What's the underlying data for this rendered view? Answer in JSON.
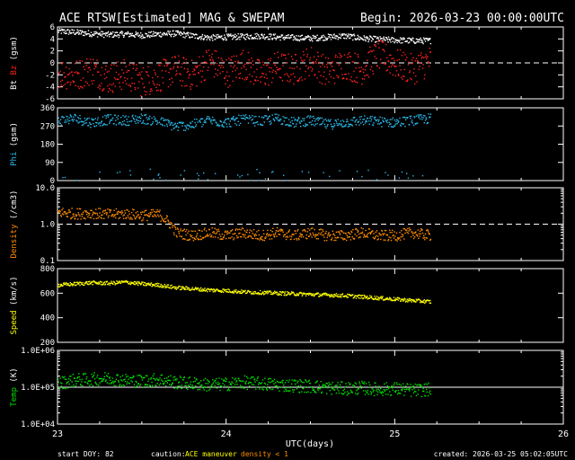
{
  "header": {
    "title": "ACE RTSW[Estimated] MAG & SWEPAM",
    "begin": "Begin: 2026-03-23 00:00:00UTC"
  },
  "footer": {
    "start_doy": "start DOY:  82",
    "caution_label": "caution:",
    "caution_maneuver": "ACE maneuver",
    "caution_density": "density < 1",
    "created": "created: 2026-03-25 05:02:05UTC"
  },
  "colors": {
    "bt": "#ffffff",
    "bz": "#ff2020",
    "phi": "#2ab8e8",
    "density": "#ff8c00",
    "speed": "#ffff00",
    "temp": "#00e000",
    "axis": "#ffffff"
  },
  "chart_data": {
    "type": "scatter",
    "title": "ACE RTSW[Estimated] MAG & SWEPAM",
    "xlabel": "UTC(days)",
    "x_ticks": [
      "23",
      "24",
      "25",
      "26"
    ],
    "xlim": [
      23,
      26
    ],
    "data_end_day": 25.21,
    "panels": [
      {
        "id": "mag",
        "ylabel_parts": [
          "Bt",
          "Bz",
          "(gsm)"
        ],
        "ylim": [
          -6,
          6
        ],
        "yticks": [
          "6",
          "4",
          "2",
          "0",
          "-2",
          "-4",
          "-6"
        ],
        "scale": "linear",
        "series": [
          {
            "name": "Bt",
            "color_key": "bt",
            "points": [
              [
                23.0,
                5.4
              ],
              [
                23.1,
                5.2
              ],
              [
                23.2,
                5.0
              ],
              [
                23.3,
                4.8
              ],
              [
                23.4,
                4.9
              ],
              [
                23.5,
                4.7
              ],
              [
                23.6,
                4.9
              ],
              [
                23.7,
                5.0
              ],
              [
                23.8,
                4.6
              ],
              [
                23.9,
                4.3
              ],
              [
                24.0,
                4.4
              ],
              [
                24.1,
                4.5
              ],
              [
                24.2,
                4.6
              ],
              [
                24.3,
                4.4
              ],
              [
                24.4,
                4.3
              ],
              [
                24.5,
                4.2
              ],
              [
                24.6,
                4.4
              ],
              [
                24.7,
                4.6
              ],
              [
                24.8,
                4.2
              ],
              [
                24.9,
                4.0
              ],
              [
                25.0,
                3.9
              ],
              [
                25.1,
                3.8
              ],
              [
                25.21,
                3.8
              ]
            ],
            "spread": 0.5
          },
          {
            "name": "Bz",
            "color_key": "bz",
            "points": [
              [
                23.0,
                -1.5
              ],
              [
                23.1,
                -2.0
              ],
              [
                23.2,
                -1.0
              ],
              [
                23.3,
                -2.5
              ],
              [
                23.4,
                -1.8
              ],
              [
                23.5,
                -3.0
              ],
              [
                23.6,
                -2.2
              ],
              [
                23.7,
                -1.0
              ],
              [
                23.8,
                -2.0
              ],
              [
                23.9,
                0.5
              ],
              [
                24.0,
                -1.5
              ],
              [
                24.1,
                0.0
              ],
              [
                24.2,
                -2.0
              ],
              [
                24.3,
                -0.5
              ],
              [
                24.4,
                -1.0
              ],
              [
                24.5,
                0.5
              ],
              [
                24.6,
                -1.5
              ],
              [
                24.7,
                0.0
              ],
              [
                24.8,
                -1.0
              ],
              [
                24.9,
                1.5
              ],
              [
                25.0,
                0.0
              ],
              [
                25.1,
                -1.0
              ],
              [
                25.21,
                0.5
              ]
            ],
            "spread": 2.6
          }
        ],
        "reference_line": 0
      },
      {
        "id": "phi",
        "ylabel_parts": [
          "Phi",
          "(gsm)"
        ],
        "ylim": [
          0,
          360
        ],
        "yticks": [
          "360",
          "270",
          "180",
          "90",
          "0"
        ],
        "scale": "linear",
        "series": [
          {
            "name": "Phi",
            "color_key": "phi",
            "points": [
              [
                23.0,
                300
              ],
              [
                23.1,
                310
              ],
              [
                23.2,
                290
              ],
              [
                23.3,
                305
              ],
              [
                23.4,
                300
              ],
              [
                23.5,
                310
              ],
              [
                23.6,
                295
              ],
              [
                23.7,
                270
              ],
              [
                23.8,
                280
              ],
              [
                23.9,
                300
              ],
              [
                24.0,
                290
              ],
              [
                24.1,
                305
              ],
              [
                24.2,
                295
              ],
              [
                24.3,
                310
              ],
              [
                24.4,
                290
              ],
              [
                24.5,
                300
              ],
              [
                24.6,
                280
              ],
              [
                24.7,
                290
              ],
              [
                24.8,
                300
              ],
              [
                24.9,
                295
              ],
              [
                25.0,
                290
              ],
              [
                25.1,
                300
              ],
              [
                25.21,
                310
              ]
            ],
            "spread": 25,
            "low_band": [
              0,
              60
            ]
          }
        ]
      },
      {
        "id": "density",
        "ylabel_parts": [
          "Density",
          "(/cm3)"
        ],
        "ylim": [
          0.1,
          10
        ],
        "yticks": [
          "10.0",
          "1.0",
          "0.1"
        ],
        "scale": "log",
        "series": [
          {
            "name": "Density",
            "color_key": "density",
            "points": [
              [
                23.0,
                2.2
              ],
              [
                23.1,
                2.0
              ],
              [
                23.2,
                2.1
              ],
              [
                23.3,
                1.9
              ],
              [
                23.4,
                2.0
              ],
              [
                23.5,
                1.8
              ],
              [
                23.6,
                1.9
              ],
              [
                23.7,
                0.6
              ],
              [
                23.8,
                0.5
              ],
              [
                23.9,
                0.6
              ],
              [
                24.0,
                0.5
              ],
              [
                24.1,
                0.6
              ],
              [
                24.2,
                0.5
              ],
              [
                24.3,
                0.6
              ],
              [
                24.4,
                0.5
              ],
              [
                24.5,
                0.6
              ],
              [
                24.6,
                0.5
              ],
              [
                24.7,
                0.5
              ],
              [
                24.8,
                0.6
              ],
              [
                24.9,
                0.5
              ],
              [
                25.0,
                0.5
              ],
              [
                25.1,
                0.6
              ],
              [
                25.21,
                0.5
              ]
            ],
            "spread_log": 0.15
          }
        ],
        "reference_line": 1.0
      },
      {
        "id": "speed",
        "ylabel_parts": [
          "Speed",
          "(km/s)"
        ],
        "ylim": [
          200,
          800
        ],
        "yticks": [
          "800",
          "600",
          "400",
          "200"
        ],
        "scale": "linear",
        "series": [
          {
            "name": "Speed",
            "color_key": "speed",
            "points": [
              [
                23.0,
                670
              ],
              [
                23.1,
                680
              ],
              [
                23.2,
                690
              ],
              [
                23.3,
                685
              ],
              [
                23.4,
                695
              ],
              [
                23.5,
                680
              ],
              [
                23.6,
                670
              ],
              [
                23.7,
                650
              ],
              [
                23.8,
                640
              ],
              [
                23.9,
                630
              ],
              [
                24.0,
                625
              ],
              [
                24.1,
                615
              ],
              [
                24.2,
                610
              ],
              [
                24.3,
                605
              ],
              [
                24.4,
                600
              ],
              [
                24.5,
                595
              ],
              [
                24.6,
                590
              ],
              [
                24.7,
                585
              ],
              [
                24.8,
                575
              ],
              [
                24.9,
                565
              ],
              [
                25.0,
                555
              ],
              [
                25.1,
                545
              ],
              [
                25.21,
                535
              ]
            ],
            "spread": 15
          }
        ]
      },
      {
        "id": "temp",
        "ylabel_parts": [
          "Temp",
          "(K)"
        ],
        "ylim": [
          10000,
          1000000
        ],
        "yticks": [
          "1.0E+06",
          "1.0E+05",
          "1.0E+04"
        ],
        "scale": "log",
        "series": [
          {
            "name": "Temp",
            "color_key": "temp",
            "points": [
              [
                23.0,
                130000
              ],
              [
                23.1,
                160000
              ],
              [
                23.2,
                170000
              ],
              [
                23.3,
                180000
              ],
              [
                23.4,
                160000
              ],
              [
                23.5,
                150000
              ],
              [
                23.6,
                170000
              ],
              [
                23.7,
                140000
              ],
              [
                23.8,
                130000
              ],
              [
                23.9,
                120000
              ],
              [
                24.0,
                125000
              ],
              [
                24.1,
                140000
              ],
              [
                24.2,
                130000
              ],
              [
                24.3,
                120000
              ],
              [
                24.4,
                115000
              ],
              [
                24.5,
                110000
              ],
              [
                24.6,
                100000
              ],
              [
                24.7,
                95000
              ],
              [
                24.8,
                100000
              ],
              [
                24.9,
                90000
              ],
              [
                25.0,
                95000
              ],
              [
                25.1,
                85000
              ],
              [
                25.21,
                90000
              ]
            ],
            "spread_log": 0.18
          }
        ],
        "reference_line": 100000
      }
    ]
  }
}
